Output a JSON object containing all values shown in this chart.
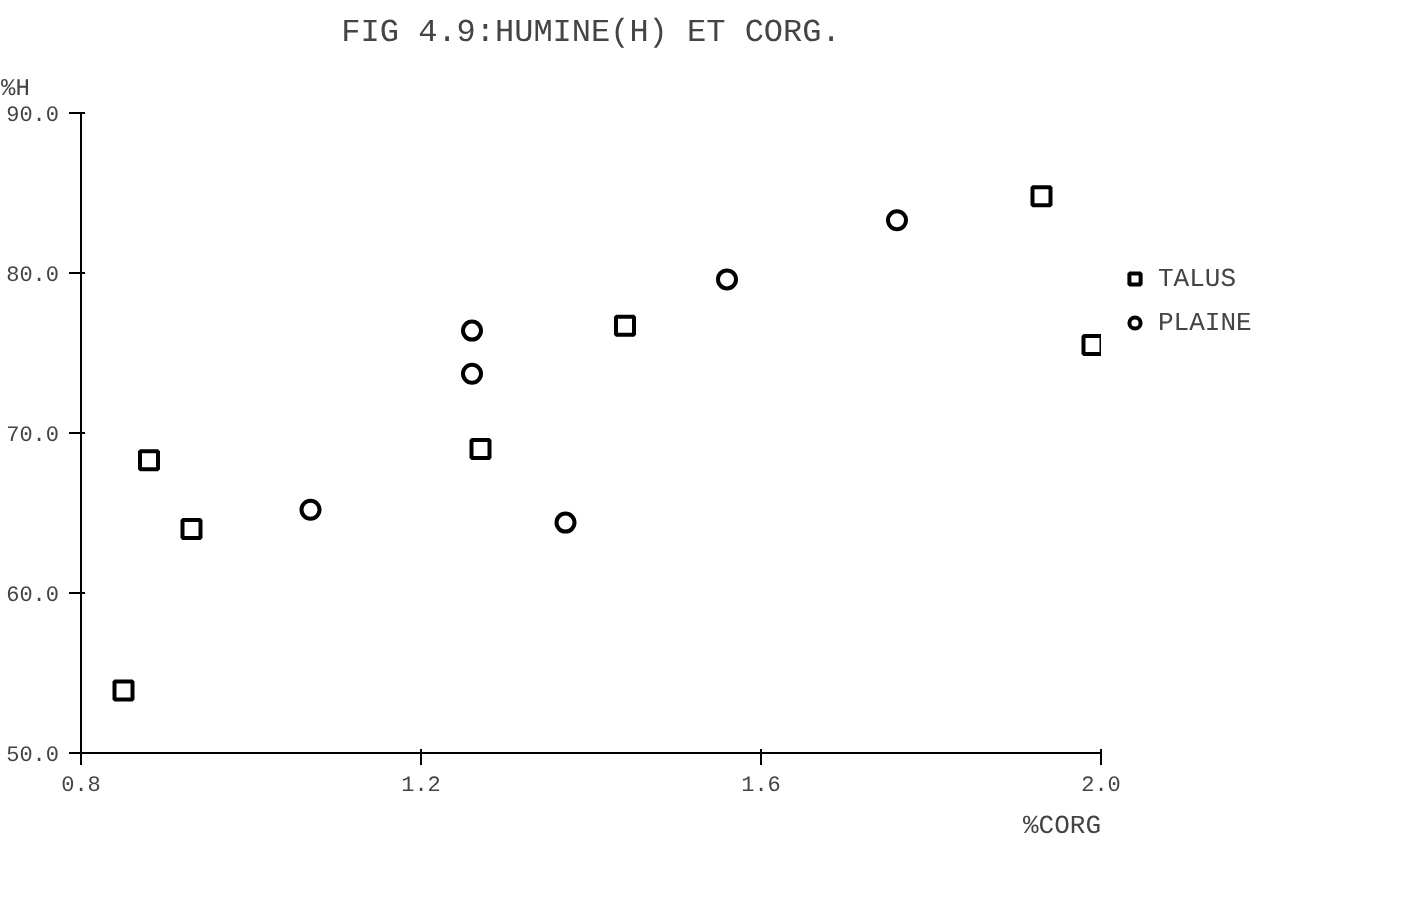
{
  "chart_data": {
    "type": "scatter",
    "title": "FIG 4.9:HUMINE(H) ET CORG.",
    "xlabel": "%CORG",
    "ylabel": "%H",
    "xlim": [
      0.8,
      2.0
    ],
    "ylim": [
      50,
      90
    ],
    "xticks": [
      0.8,
      1.2,
      1.6,
      {
        "value": 2.0,
        "label": "2.0"
      }
    ],
    "yticks": [
      {
        "value": 50,
        "label": "50.0"
      },
      {
        "value": 60,
        "label": "60.0"
      },
      {
        "value": 70,
        "label": "70.0"
      },
      {
        "value": 80,
        "label": "80.0"
      },
      {
        "value": 90,
        "label": "90.0"
      }
    ],
    "grid": false,
    "legend": "right",
    "series": [
      {
        "name": "TALUS",
        "color": "#000000",
        "marker": "square",
        "x": [
          0.85,
          0.88,
          0.93,
          1.27,
          1.44,
          1.93,
          1.99
        ],
        "values": [
          53.9,
          68.3,
          64.0,
          69.0,
          76.7,
          84.8,
          75.5
        ]
      },
      {
        "name": "PLAINE",
        "color": "#000000",
        "marker": "circle",
        "x": [
          1.07,
          1.26,
          1.26,
          1.37,
          1.56,
          1.76
        ],
        "values": [
          65.2,
          76.4,
          73.7,
          64.4,
          79.6,
          83.3
        ]
      }
    ]
  }
}
